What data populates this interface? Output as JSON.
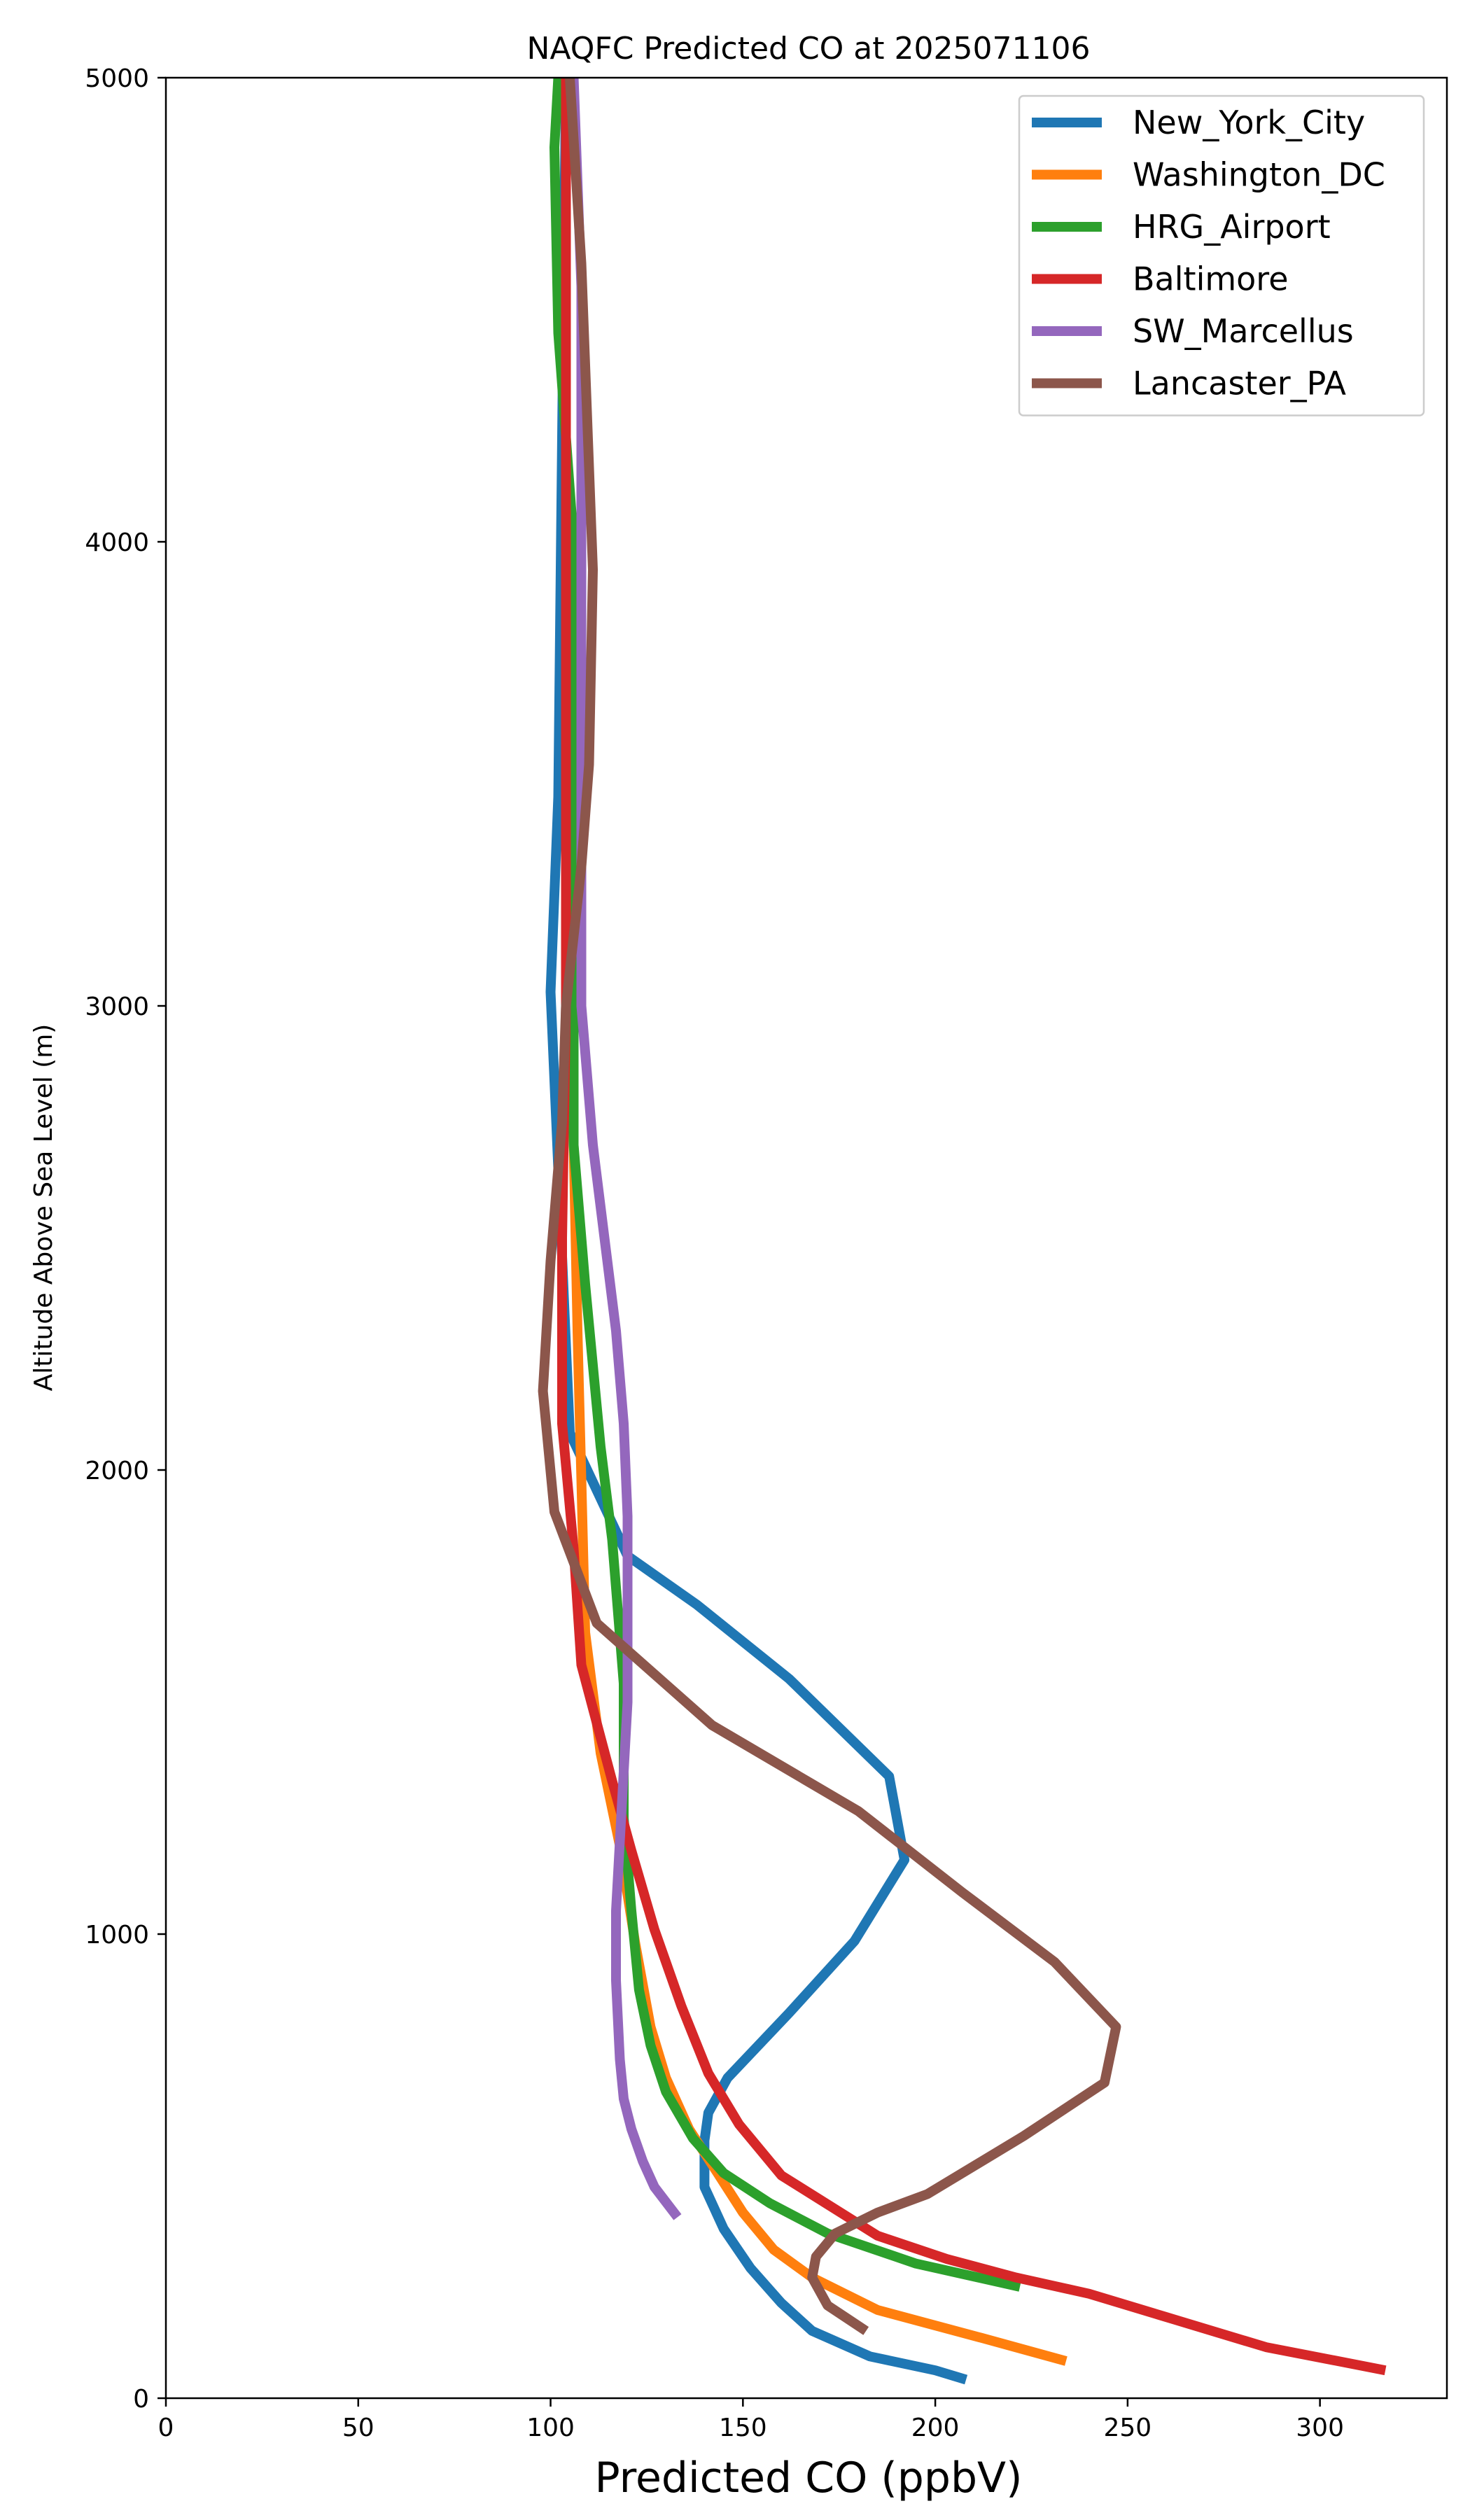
{
  "chart_data": {
    "type": "line",
    "title": "NAQFC Predicted CO at 2025071106",
    "xlabel": "Predicted CO (ppbV)",
    "ylabel": "Altitude Above Sea Level (m)",
    "xlim": [
      0,
      333
    ],
    "ylim": [
      0,
      5000
    ],
    "xticks": [
      0,
      50,
      100,
      150,
      200,
      250,
      300
    ],
    "yticks": [
      0,
      1000,
      2000,
      3000,
      4000,
      5000
    ],
    "grid": false,
    "legend_position": "top-right",
    "series": [
      {
        "name": "New_York_City",
        "color": "#1f77b4",
        "points": [
          [
            208,
            40
          ],
          [
            200,
            60
          ],
          [
            183,
            90
          ],
          [
            168,
            145
          ],
          [
            160,
            205
          ],
          [
            152,
            280
          ],
          [
            145,
            365
          ],
          [
            140,
            455
          ],
          [
            140,
            555
          ],
          [
            141,
            615
          ],
          [
            146,
            690
          ],
          [
            162,
            830
          ],
          [
            179,
            985
          ],
          [
            192,
            1160
          ],
          [
            188,
            1340
          ],
          [
            162,
            1550
          ],
          [
            138,
            1710
          ],
          [
            120,
            1815
          ],
          [
            105,
            2080
          ],
          [
            100,
            3030
          ],
          [
            102,
            3450
          ],
          [
            104,
            5000
          ]
        ]
      },
      {
        "name": "Washington_DC",
        "color": "#ff7f0e",
        "points": [
          [
            234,
            80
          ],
          [
            212,
            130
          ],
          [
            185,
            190
          ],
          [
            168,
            260
          ],
          [
            158,
            320
          ],
          [
            150,
            400
          ],
          [
            143,
            490
          ],
          [
            136,
            580
          ],
          [
            130,
            690
          ],
          [
            126,
            800
          ],
          [
            122,
            980
          ],
          [
            118,
            1190
          ],
          [
            113,
            1390
          ],
          [
            109,
            1650
          ],
          [
            108,
            1980
          ],
          [
            107,
            2300
          ],
          [
            106,
            2700
          ],
          [
            105,
            3000
          ],
          [
            104,
            3500
          ],
          [
            104,
            4000
          ],
          [
            104,
            4500
          ],
          [
            104,
            5000
          ]
        ]
      },
      {
        "name": "HRG_Airport",
        "color": "#2ca02c",
        "points": [
          [
            222,
            240
          ],
          [
            195,
            290
          ],
          [
            172,
            355
          ],
          [
            157,
            420
          ],
          [
            145,
            485
          ],
          [
            137,
            560
          ],
          [
            130,
            660
          ],
          [
            126,
            760
          ],
          [
            123,
            880
          ],
          [
            121,
            1050
          ],
          [
            119,
            1250
          ],
          [
            119,
            1540
          ],
          [
            116,
            1850
          ],
          [
            113,
            2050
          ],
          [
            109,
            2400
          ],
          [
            106,
            2700
          ],
          [
            106,
            3500
          ],
          [
            106,
            4000
          ],
          [
            102,
            4450
          ],
          [
            101,
            4850
          ],
          [
            102,
            5000
          ]
        ]
      },
      {
        "name": "Baltimore",
        "color": "#d62728",
        "points": [
          [
            317,
            60
          ],
          [
            286,
            110
          ],
          [
            262,
            170
          ],
          [
            240,
            225
          ],
          [
            221,
            260
          ],
          [
            203,
            300
          ],
          [
            185,
            350
          ],
          [
            160,
            480
          ],
          [
            149,
            590
          ],
          [
            141,
            700
          ],
          [
            134,
            845
          ],
          [
            127,
            1010
          ],
          [
            121,
            1180
          ],
          [
            116,
            1330
          ],
          [
            108,
            1580
          ],
          [
            106,
            1830
          ],
          [
            103,
            2100
          ],
          [
            103,
            2500
          ],
          [
            104,
            3000
          ],
          [
            104,
            3500
          ],
          [
            104,
            4000
          ],
          [
            104,
            4500
          ],
          [
            104,
            5000
          ]
        ]
      },
      {
        "name": "SW_Marcellus",
        "color": "#9467bd",
        "points": [
          [
            133,
            390
          ],
          [
            127,
            455
          ],
          [
            124,
            510
          ],
          [
            121,
            580
          ],
          [
            119,
            645
          ],
          [
            118,
            730
          ],
          [
            117,
            900
          ],
          [
            117,
            1050
          ],
          [
            118,
            1200
          ],
          [
            119,
            1350
          ],
          [
            120,
            1500
          ],
          [
            120,
            1700
          ],
          [
            120,
            1900
          ],
          [
            119,
            2100
          ],
          [
            117,
            2300
          ],
          [
            114,
            2500
          ],
          [
            111,
            2700
          ],
          [
            109,
            2900
          ],
          [
            108,
            3000
          ],
          [
            108,
            3500
          ],
          [
            108,
            4000
          ],
          [
            108,
            4550
          ],
          [
            106,
            5000
          ]
        ]
      },
      {
        "name": "Lancaster_PA",
        "color": "#8c564b",
        "points": [
          [
            182,
            145
          ],
          [
            172,
            200
          ],
          [
            168,
            260
          ],
          [
            169,
            305
          ],
          [
            174,
            355
          ],
          [
            185,
            400
          ],
          [
            198,
            440
          ],
          [
            223,
            565
          ],
          [
            244,
            680
          ],
          [
            247,
            800
          ],
          [
            231,
            940
          ],
          [
            207,
            1090
          ],
          [
            180,
            1265
          ],
          [
            142,
            1450
          ],
          [
            112,
            1670
          ],
          [
            101,
            1910
          ],
          [
            98,
            2170
          ],
          [
            100,
            2450
          ],
          [
            103,
            2750
          ],
          [
            104,
            3000
          ],
          [
            108,
            3300
          ],
          [
            110,
            3520
          ],
          [
            111,
            3940
          ],
          [
            108,
            4600
          ],
          [
            105,
            5000
          ]
        ]
      }
    ]
  }
}
